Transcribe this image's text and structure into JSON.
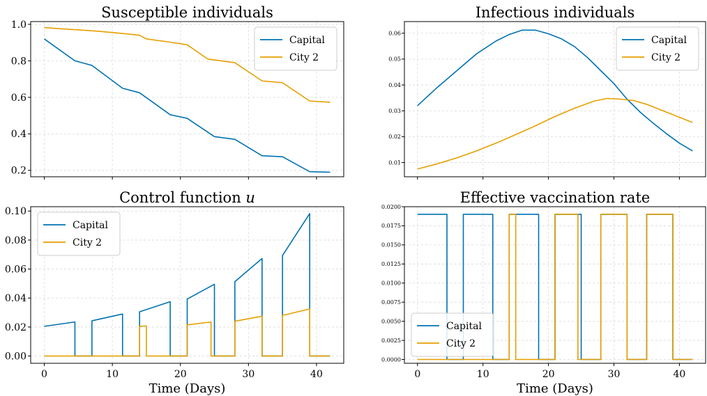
{
  "colors": {
    "capital": "#0072B2",
    "city2": "#E69F00"
  },
  "chart_data": [
    {
      "type": "line",
      "title": "Susceptible individuals",
      "xlabel": "",
      "ylabel": "",
      "xlim": [
        -2,
        44
      ],
      "ylim": [
        0.165,
        1.015
      ],
      "xticks": [
        0,
        10,
        20,
        30,
        40
      ],
      "xticklabels": [
        "",
        "",
        "",
        "",
        ""
      ],
      "yticks": [
        0.2,
        0.4,
        0.6,
        0.8,
        1.0
      ],
      "yticklabels": [
        "0.2",
        "0.4",
        "0.6",
        "0.8",
        "1.0"
      ],
      "grid": true,
      "legend": "top-right",
      "series": [
        {
          "name": "Capital",
          "color": "#0072B2",
          "x": [
            0,
            4.5,
            7,
            11.5,
            14,
            18.5,
            21,
            25,
            28,
            32,
            35,
            39,
            42
          ],
          "y": [
            0.92,
            0.8,
            0.775,
            0.65,
            0.625,
            0.505,
            0.485,
            0.385,
            0.37,
            0.28,
            0.275,
            0.193,
            0.19
          ]
        },
        {
          "name": "City 2",
          "color": "#E69F00",
          "x": [
            0,
            4,
            8,
            12,
            14,
            15,
            18,
            21,
            24,
            28,
            32,
            35,
            39,
            42
          ],
          "y": [
            0.982,
            0.972,
            0.962,
            0.948,
            0.94,
            0.92,
            0.905,
            0.888,
            0.81,
            0.79,
            0.69,
            0.68,
            0.58,
            0.573
          ]
        }
      ]
    },
    {
      "type": "line",
      "title": "Infectious individuals",
      "xlabel": "",
      "ylabel": "",
      "xlim": [
        -2,
        44
      ],
      "ylim": [
        0.0045,
        0.0645
      ],
      "xticks": [
        0,
        10,
        20,
        30,
        40
      ],
      "xticklabels": [
        "",
        "",
        "",
        "",
        ""
      ],
      "yticks": [
        0.01,
        0.02,
        0.03,
        0.04,
        0.05,
        0.06
      ],
      "yticklabels": [
        "0.01",
        "0.02",
        "0.03",
        "0.04",
        "0.05",
        "0.06"
      ],
      "grid": true,
      "legend": "top-right",
      "series": [
        {
          "name": "Capital",
          "color": "#0072B2",
          "x": [
            0,
            3,
            6,
            9,
            12,
            14,
            16,
            18,
            20,
            22,
            24,
            26,
            28,
            30,
            32,
            34,
            36,
            38,
            40,
            42
          ],
          "y": [
            0.032,
            0.039,
            0.0455,
            0.052,
            0.057,
            0.0595,
            0.0612,
            0.0612,
            0.0598,
            0.0578,
            0.0548,
            0.0505,
            0.0455,
            0.0405,
            0.0345,
            0.0295,
            0.0252,
            0.0212,
            0.0175,
            0.0145
          ]
        },
        {
          "name": "City 2",
          "color": "#E69F00",
          "x": [
            0,
            3,
            6,
            9,
            12,
            15,
            18,
            21,
            24,
            27,
            29,
            31,
            33,
            35,
            37,
            39,
            42
          ],
          "y": [
            0.0075,
            0.0095,
            0.0118,
            0.0145,
            0.0175,
            0.0208,
            0.0242,
            0.0278,
            0.031,
            0.0338,
            0.0348,
            0.0345,
            0.034,
            0.0325,
            0.0305,
            0.0285,
            0.0255
          ]
        }
      ]
    },
    {
      "type": "line",
      "title": "Control function u",
      "xlabel": "Time (Days)",
      "ylabel": "",
      "xlim": [
        -2,
        44
      ],
      "ylim": [
        -0.005,
        0.103
      ],
      "xticks": [
        0,
        10,
        20,
        30,
        40
      ],
      "xticklabels": [
        "0",
        "10",
        "20",
        "30",
        "40"
      ],
      "yticks": [
        0.0,
        0.02,
        0.04,
        0.06,
        0.08,
        0.1
      ],
      "yticklabels": [
        "0.00",
        "0.02",
        "0.04",
        "0.06",
        "0.08",
        "0.10"
      ],
      "grid": true,
      "legend": "top-left",
      "series": [
        {
          "name": "Capital",
          "color": "#0072B2",
          "x": [
            0,
            4.5,
            4.5,
            7,
            7,
            11.5,
            11.5,
            14,
            14,
            18.5,
            18.5,
            21,
            21,
            25,
            25,
            28,
            28,
            32,
            32,
            35,
            35,
            39,
            39,
            42
          ],
          "y": [
            0.0205,
            0.0235,
            0,
            0,
            0.0243,
            0.029,
            0,
            0,
            0.0305,
            0.0375,
            0,
            0,
            0.0393,
            0.0495,
            0,
            0,
            0.0513,
            0.0673,
            0,
            0,
            0.0693,
            0.0983,
            0,
            0
          ]
        },
        {
          "name": "City 2",
          "color": "#E69F00",
          "x": [
            0,
            14,
            14,
            15,
            15,
            21,
            21,
            24.5,
            24.5,
            28,
            28,
            32,
            32,
            35,
            35,
            39,
            39,
            42
          ],
          "y": [
            0,
            0,
            0.0205,
            0.0208,
            0,
            0,
            0.0215,
            0.0235,
            0,
            0,
            0.024,
            0.0275,
            0,
            0,
            0.028,
            0.0325,
            0,
            0
          ]
        }
      ]
    },
    {
      "type": "line",
      "title": "Effective vaccination rate",
      "xlabel": "Time (Days)",
      "ylabel": "",
      "xlim": [
        -2,
        44
      ],
      "ylim": [
        -0.0005,
        0.02
      ],
      "xticks": [
        0,
        10,
        20,
        30,
        40
      ],
      "xticklabels": [
        "0",
        "10",
        "20",
        "30",
        "40"
      ],
      "yticks": [
        0.0,
        0.0025,
        0.005,
        0.0075,
        0.01,
        0.0125,
        0.015,
        0.0175,
        0.02
      ],
      "yticklabels": [
        "0.0000",
        "0.0025",
        "0.0050",
        "0.0075",
        "0.0100",
        "0.0125",
        "0.0150",
        "0.0175",
        "0.0200"
      ],
      "grid": true,
      "legend": "bottom-left",
      "series": [
        {
          "name": "Capital",
          "color": "#0072B2",
          "x": [
            0,
            4.5,
            4.5,
            7,
            7,
            11.5,
            11.5,
            14,
            14,
            18.5,
            18.5,
            21,
            21,
            25,
            25,
            28,
            28,
            32,
            32,
            35,
            35,
            39,
            39,
            42
          ],
          "y": [
            0.019,
            0.019,
            0,
            0,
            0.019,
            0.019,
            0,
            0,
            0.019,
            0.019,
            0,
            0,
            0.019,
            0.019,
            0,
            0,
            0.019,
            0.019,
            0,
            0,
            0.019,
            0.019,
            0,
            0
          ]
        },
        {
          "name": "City 2",
          "color": "#E69F00",
          "x": [
            0,
            14,
            14,
            15,
            15,
            21,
            21,
            24.5,
            24.5,
            28,
            28,
            32,
            32,
            35,
            35,
            39,
            39,
            42
          ],
          "y": [
            0,
            0,
            0.019,
            0.019,
            0,
            0,
            0.019,
            0.019,
            0,
            0,
            0.019,
            0.019,
            0,
            0,
            0.019,
            0.019,
            0,
            0
          ]
        }
      ]
    }
  ]
}
